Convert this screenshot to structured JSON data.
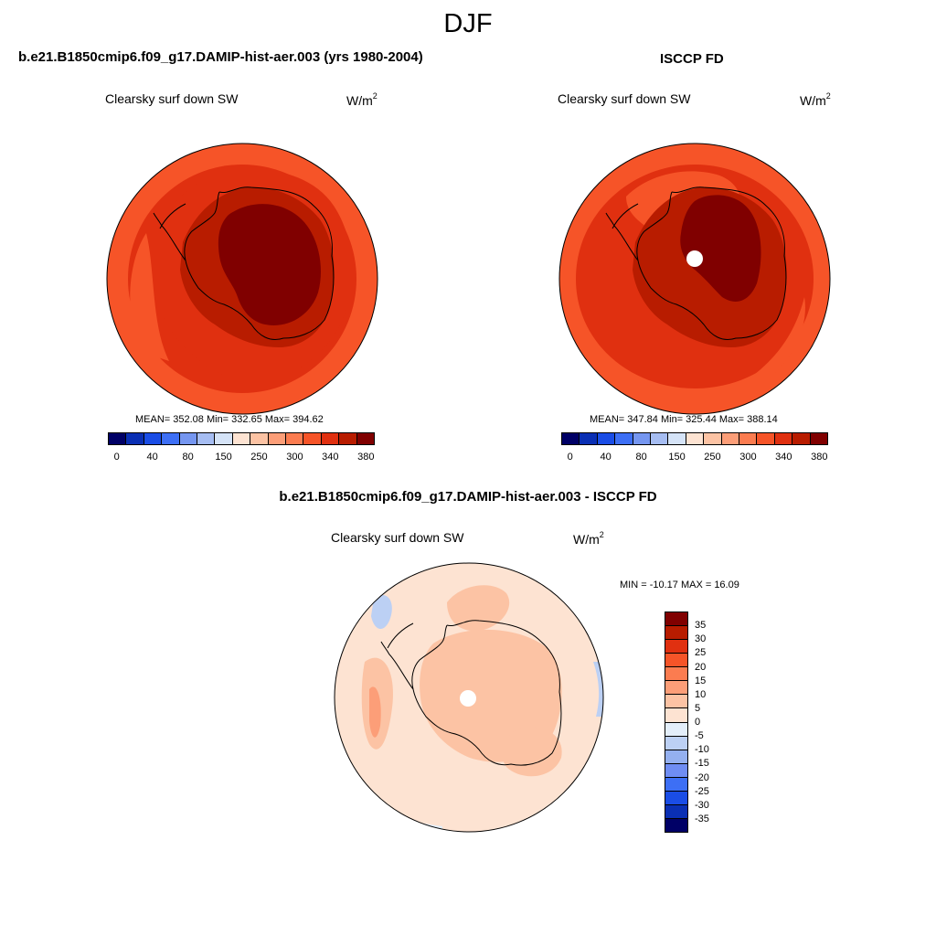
{
  "page_title": "DJF",
  "units_base": "W/m",
  "units_exp": "2",
  "colors": {
    "abs_scale": [
      "#000066",
      "#0a2fb4",
      "#1a4de6",
      "#3d6ff5",
      "#7596f0",
      "#a6bdf2",
      "#d5e3f7",
      "#fde3d2",
      "#fcc3a4",
      "#fc9e78",
      "#fb7c50",
      "#f65428",
      "#e03010",
      "#b81c00",
      "#800000"
    ],
    "diff_scale": [
      "#800000",
      "#b81c00",
      "#e03010",
      "#f65428",
      "#fb7c50",
      "#fc9e78",
      "#fcc3a4",
      "#fde3d2",
      "#e3eefa",
      "#bcd0f4",
      "#94b0f0",
      "#6f8df3",
      "#3d6ff5",
      "#1a4de6",
      "#0a2fb4",
      "#000066"
    ],
    "coastline": "#000000"
  },
  "chart_data": [
    {
      "type": "heatmap",
      "projection": "south-polar-stereographic",
      "title": "b.e21.B1850cmip6.f09_g17.DAMIP-hist-aer.003 (yrs 1980-2004)",
      "subtitle": "Clearsky surf down SW",
      "stats": "MEAN= 352.08  Min= 332.65  Max= 394.62",
      "mean": 352.08,
      "min": 332.65,
      "max": 394.62,
      "colorbar_labels": [
        "0",
        "40",
        "80",
        "150",
        "250",
        "300",
        "340",
        "380"
      ],
      "has_polar_hole": false
    },
    {
      "type": "heatmap",
      "projection": "south-polar-stereographic",
      "title": "ISCCP FD",
      "subtitle": "Clearsky surf down SW",
      "stats": "MEAN= 347.84  Min= 325.44  Max= 388.14",
      "mean": 347.84,
      "min": 325.44,
      "max": 388.14,
      "colorbar_labels": [
        "0",
        "40",
        "80",
        "150",
        "250",
        "300",
        "340",
        "380"
      ],
      "has_polar_hole": true
    },
    {
      "type": "heatmap",
      "projection": "south-polar-stereographic",
      "title": "b.e21.B1850cmip6.f09_g17.DAMIP-hist-aer.003 - ISCCP FD",
      "subtitle": "Clearsky surf down SW",
      "stats": "MIN = -10.17 MAX =  16.09",
      "min": -10.17,
      "max": 16.09,
      "colorbar_labels": [
        "35",
        "30",
        "25",
        "20",
        "15",
        "10",
        "5",
        "0",
        "-5",
        "-10",
        "-15",
        "-20",
        "-25",
        "-30",
        "-35"
      ],
      "has_polar_hole": true
    }
  ]
}
